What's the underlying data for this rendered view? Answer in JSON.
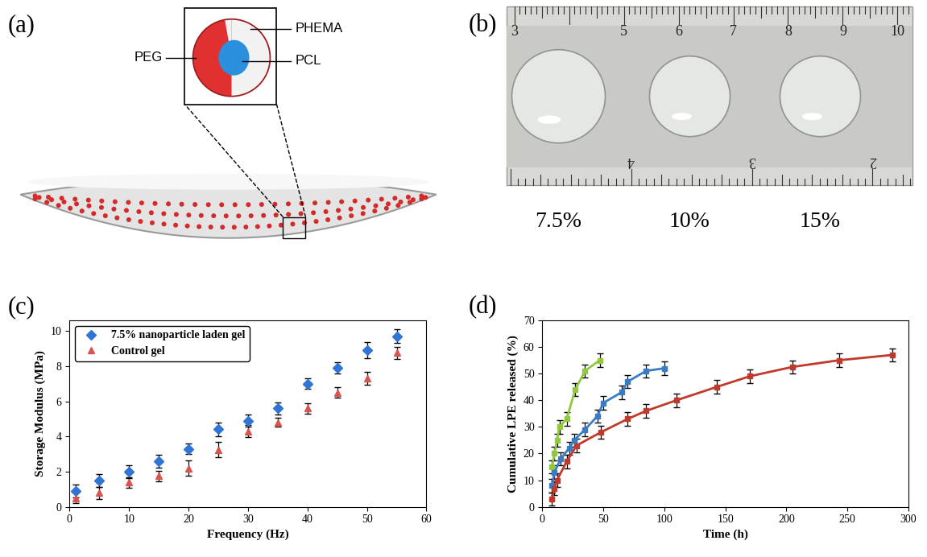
{
  "panel_labels": [
    "(a)",
    "(b)",
    "(c)",
    "(d)"
  ],
  "diagram": {
    "labels": {
      "outer": "PEG",
      "middle": "PHEMA",
      "core": "PCL"
    }
  },
  "photo": {
    "ruler_top_numbers": [
      3,
      5,
      6,
      7,
      8,
      9,
      10
    ],
    "ruler_bottom_numbers": [
      4,
      3,
      2
    ],
    "captions": [
      "7.5%",
      "10%",
      "15%"
    ]
  },
  "chart_data": [
    {
      "type": "scatter",
      "x_label": "Frequency (Hz)",
      "y_label": "Storage Modulus (MPa)",
      "xlim": [
        0,
        60
      ],
      "xticks": [
        0,
        10,
        20,
        30,
        40,
        50,
        60
      ],
      "ylim": [
        0,
        10.6
      ],
      "yticks": [
        0,
        2,
        4,
        6,
        8,
        10
      ],
      "legend": "upper left",
      "x": [
        1,
        5,
        10,
        15,
        20,
        25,
        30,
        35,
        40,
        45,
        50,
        55
      ],
      "series": [
        {
          "name": "7.5% nanoparticle laden gel",
          "color": "#2e75d6",
          "marker": "diamond",
          "values": [
            0.9,
            1.5,
            2.0,
            2.6,
            3.3,
            4.4,
            4.9,
            5.6,
            7.0,
            7.9,
            8.9,
            9.7
          ],
          "error": [
            0.35,
            0.35,
            0.35,
            0.35,
            0.3,
            0.4,
            0.35,
            0.35,
            0.3,
            0.3,
            0.45,
            0.4
          ]
        },
        {
          "name": "Control gel",
          "color": "#d9534f",
          "marker": "triangle",
          "values": [
            0.5,
            0.8,
            1.4,
            1.75,
            2.2,
            3.25,
            4.3,
            4.8,
            5.6,
            6.5,
            7.3,
            8.75
          ],
          "error": [
            0.3,
            0.35,
            0.3,
            0.3,
            0.45,
            0.45,
            0.35,
            0.25,
            0.3,
            0.3,
            0.35,
            0.35
          ]
        }
      ]
    },
    {
      "type": "line",
      "x_label": "Time (h)",
      "y_label": "Cumulative LPE released (%)",
      "xlim": [
        0,
        300
      ],
      "xticks": [
        0,
        50,
        100,
        150,
        200,
        250,
        300
      ],
      "ylim": [
        0,
        70
      ],
      "yticks": [
        0,
        10,
        20,
        30,
        40,
        50,
        60,
        70
      ],
      "series": [
        {
          "color": "#92c83e",
          "marker": "square",
          "x": [
            8,
            10,
            12,
            14,
            20,
            27,
            35,
            47
          ],
          "values": [
            15,
            20,
            25,
            30,
            33,
            44,
            51,
            55
          ],
          "error": [
            2.5,
            2.5,
            2.5,
            2.5,
            2.5,
            2.5,
            2.5,
            2.5
          ]
        },
        {
          "color": "#3a7cc4",
          "marker": "square",
          "x": [
            8,
            10,
            15,
            22,
            26,
            35,
            45,
            50,
            65,
            70,
            85,
            100
          ],
          "values": [
            8,
            13,
            18,
            22,
            25,
            29,
            34,
            39,
            43,
            47,
            51,
            52
          ],
          "error": [
            2.5,
            2.5,
            2.5,
            2.5,
            2.5,
            2.5,
            2.5,
            2.5,
            2.5,
            2.5,
            2.5,
            2.5
          ]
        },
        {
          "color": "#c0392b",
          "marker": "square",
          "x": [
            8,
            10,
            12,
            20,
            28,
            48,
            70,
            85,
            110,
            143,
            170,
            205,
            243,
            287
          ],
          "values": [
            3,
            7,
            10,
            17,
            23,
            28,
            33,
            36,
            40,
            45,
            49,
            52.5,
            55,
            57
          ],
          "error": [
            2.5,
            2.5,
            2.5,
            2.5,
            2.5,
            2.5,
            2.5,
            2.5,
            2.5,
            2.5,
            2.5,
            2.5,
            2.5,
            2.5
          ]
        }
      ]
    }
  ]
}
